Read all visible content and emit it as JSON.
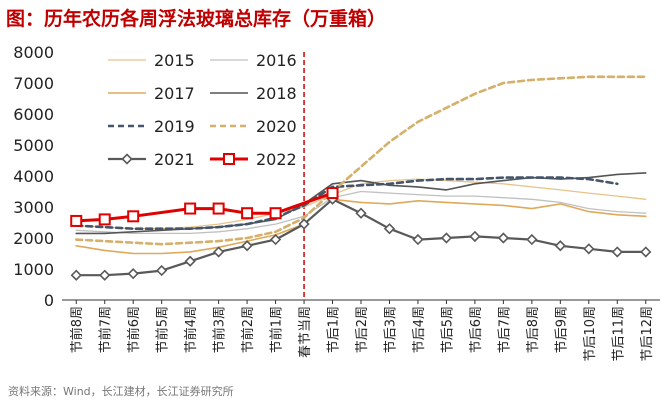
{
  "chart_data": {
    "type": "line",
    "title": "图：历年农历各周浮法玻璃总库存（万重箱）",
    "source": "资料来源：Wind，长江建材，长江证券研究所",
    "ylim": [
      0,
      8000
    ],
    "yticks": [
      0,
      1000,
      2000,
      3000,
      4000,
      5000,
      6000,
      7000,
      8000
    ],
    "categories": [
      "节前8周",
      "节前7周",
      "节前6周",
      "节前5周",
      "节前4周",
      "节前3周",
      "节前2周",
      "节前1周",
      "春节当周",
      "节后1周",
      "节后2周",
      "节后3周",
      "节后4周",
      "节后5周",
      "节后6周",
      "节后7周",
      "节后8周",
      "节后9周",
      "节后10周",
      "节后11周",
      "节后12周"
    ],
    "spring_festival_index": 8,
    "series": [
      {
        "name": "2015",
        "color": "#e6c489",
        "dash": "",
        "width": 1.3,
        "marker": "none",
        "values": [
          2400,
          2350,
          2300,
          2300,
          2350,
          2450,
          2600,
          2800,
          3000,
          3400,
          3750,
          3850,
          3900,
          3850,
          3800,
          3750,
          3650,
          3550,
          3450,
          3350,
          3250
        ]
      },
      {
        "name": "2016",
        "color": "#c0c0c0",
        "dash": "",
        "width": 1.3,
        "marker": "none",
        "values": [
          2250,
          2200,
          2150,
          2150,
          2150,
          2200,
          2300,
          2450,
          2700,
          3300,
          3500,
          3450,
          3400,
          3350,
          3350,
          3300,
          3250,
          3150,
          2950,
          2850,
          2800
        ]
      },
      {
        "name": "2017",
        "color": "#dfa95a",
        "dash": "",
        "width": 1.6,
        "marker": "none",
        "values": [
          1750,
          1600,
          1500,
          1500,
          1550,
          1700,
          1900,
          2100,
          2450,
          3250,
          3150,
          3100,
          3200,
          3150,
          3100,
          3050,
          2950,
          3100,
          2850,
          2750,
          2700
        ]
      },
      {
        "name": "2018",
        "color": "#555555",
        "dash": "",
        "width": 1.6,
        "marker": "none",
        "values": [
          2150,
          2150,
          2200,
          2250,
          2300,
          2350,
          2450,
          2600,
          3100,
          3750,
          3850,
          3700,
          3650,
          3550,
          3750,
          3850,
          3950,
          3900,
          3950,
          4050,
          4100
        ]
      },
      {
        "name": "2019",
        "color": "#44546a",
        "dash": "6,4",
        "width": 2.6,
        "marker": "none",
        "values": [
          2400,
          2350,
          2300,
          2300,
          2300,
          2350,
          2450,
          2650,
          3050,
          3650,
          3700,
          3750,
          3850,
          3900,
          3900,
          3950,
          3950,
          3950,
          3900,
          3750,
          null
        ]
      },
      {
        "name": "2020",
        "color": "#d4b06a",
        "dash": "6,4",
        "width": 2.6,
        "marker": "none",
        "values": [
          1950,
          1900,
          1850,
          1800,
          1850,
          1900,
          2000,
          2200,
          2650,
          3500,
          4300,
          5100,
          5750,
          6200,
          6650,
          7000,
          7100,
          7150,
          7200,
          7200,
          7200
        ]
      },
      {
        "name": "2021",
        "color": "#595959",
        "dash": "",
        "width": 2.2,
        "marker": "diamond",
        "values": [
          800,
          800,
          850,
          950,
          1250,
          1550,
          1750,
          1950,
          2450,
          3250,
          2800,
          2300,
          1950,
          2000,
          2050,
          2000,
          1950,
          1750,
          1650,
          1550,
          1550
        ]
      },
      {
        "name": "2022",
        "color": "#e00000",
        "dash": "",
        "width": 3,
        "marker": "square",
        "values": [
          2550,
          2600,
          2700,
          null,
          2950,
          2950,
          2800,
          2800,
          null,
          3450,
          null,
          null,
          null,
          null,
          null,
          null,
          null,
          null,
          null,
          null,
          null
        ]
      }
    ]
  }
}
